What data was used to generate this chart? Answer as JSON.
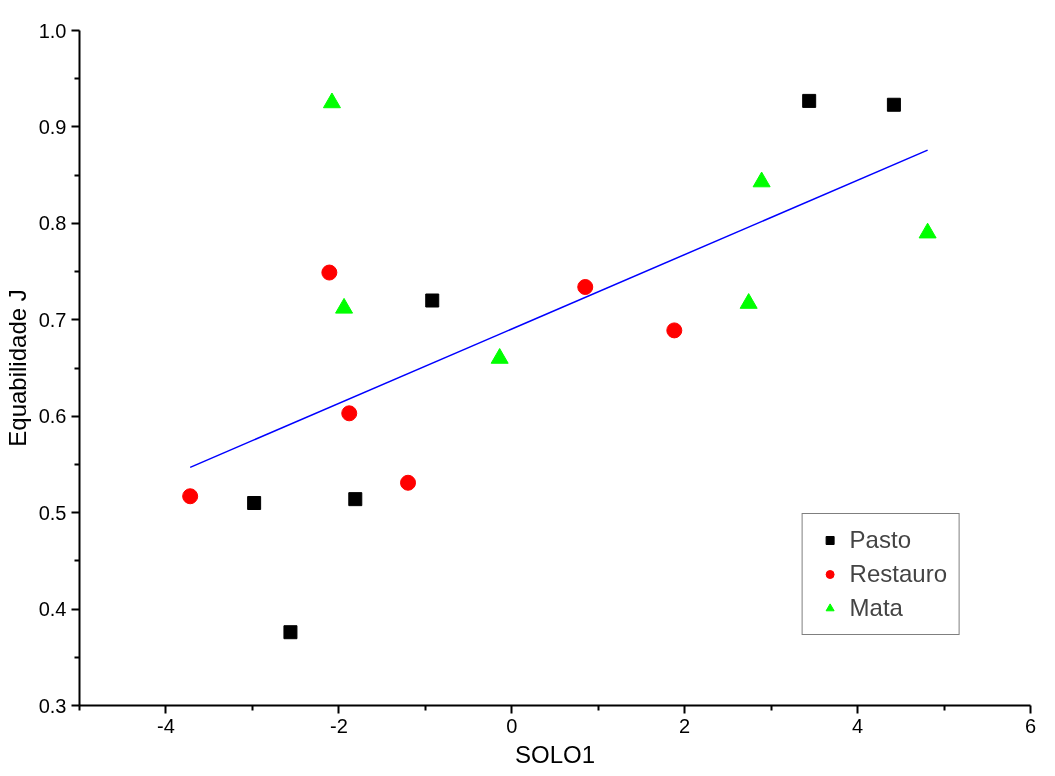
{
  "chart_data": {
    "type": "scatter",
    "xlabel": "SOLO1",
    "ylabel": "Equabilidade J",
    "xlim": [
      -5,
      6
    ],
    "ylim": [
      0.3,
      1.0
    ],
    "xticks": [
      {
        "value": -5,
        "label": null
      },
      -4,
      {
        "value": -3,
        "label": null
      },
      -2,
      {
        "value": -1,
        "label": null
      },
      0,
      {
        "value": 1,
        "label": null
      },
      2,
      {
        "value": 3,
        "label": null
      },
      4,
      {
        "value": 5,
        "label": null
      },
      6
    ],
    "yticks": [
      0.3,
      {
        "value": 0.35,
        "label": null
      },
      0.4,
      {
        "value": 0.45,
        "label": null
      },
      0.5,
      {
        "value": 0.55,
        "label": null
      },
      0.6,
      {
        "value": 0.65,
        "label": null
      },
      0.7,
      {
        "value": 0.75,
        "label": null
      },
      0.8,
      {
        "value": 0.85,
        "label": null
      },
      0.9,
      {
        "value": 0.95,
        "label": null
      },
      {
        "value": 1.0,
        "label": "1.0"
      }
    ],
    "grid": false,
    "legend": "bottom right",
    "series": [
      {
        "name": "Pasto",
        "color": "#000000",
        "marker": "square",
        "x": [
          -2.98,
          -2.56,
          -1.81,
          -0.92,
          3.44,
          4.42
        ],
        "values": [
          0.51,
          0.376,
          0.514,
          0.72,
          0.927,
          0.923
        ]
      },
      {
        "name": "Restauro",
        "color": "#ff0000",
        "marker": "circle",
        "x": [
          -3.72,
          -2.11,
          -1.88,
          -1.2,
          0.85,
          1.88
        ],
        "values": [
          0.517,
          0.749,
          0.603,
          0.531,
          0.734,
          0.689
        ]
      },
      {
        "name": "Mata",
        "color": "#00ff00",
        "marker": "triangle",
        "x": [
          -2.08,
          -1.94,
          -0.14,
          2.89,
          2.74,
          4.81
        ],
        "values": [
          0.925,
          0.712,
          0.66,
          0.843,
          0.717,
          0.79
        ]
      },
      {
        "type": "line",
        "color": "#0000ff",
        "x": [
          -3.72,
          4.81
        ],
        "values": [
          0.547,
          0.876
        ]
      }
    ]
  }
}
